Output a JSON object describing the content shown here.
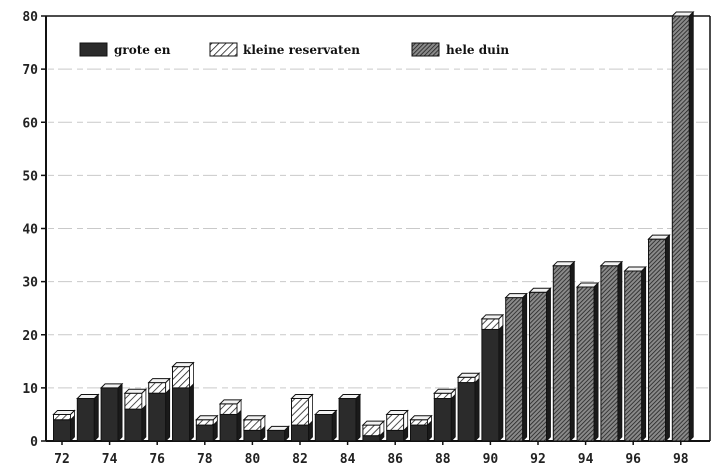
{
  "chart_data": {
    "type": "bar",
    "stacked": true,
    "title": "",
    "xlabel": "",
    "ylabel": "",
    "ylim": [
      0,
      80
    ],
    "yticks": [
      "0",
      "10",
      "20",
      "30",
      "40",
      "50",
      "60",
      "70",
      "80"
    ],
    "grid": true,
    "legend_position": "top-left",
    "categories": [
      "72",
      "73",
      "74",
      "75",
      "76",
      "77",
      "78",
      "79",
      "80",
      "81",
      "82",
      "83",
      "84",
      "85",
      "86",
      "87",
      "88",
      "89",
      "90",
      "91",
      "92",
      "93",
      "94",
      "95",
      "96",
      "97",
      "98"
    ],
    "xtick_labels": [
      {
        "index": 0,
        "label": "72"
      },
      {
        "index": 2,
        "label": "74"
      },
      {
        "index": 4,
        "label": "76"
      },
      {
        "index": 6,
        "label": "78"
      },
      {
        "index": 8,
        "label": "80"
      },
      {
        "index": 10,
        "label": "82"
      },
      {
        "index": 12,
        "label": "84"
      },
      {
        "index": 14,
        "label": "86"
      },
      {
        "index": 16,
        "label": "88"
      },
      {
        "index": 18,
        "label": "90"
      },
      {
        "index": 20,
        "label": "92"
      },
      {
        "index": 22,
        "label": "94"
      },
      {
        "index": 24,
        "label": "96"
      },
      {
        "index": 26,
        "label": "98"
      }
    ],
    "series": [
      {
        "name": "grote en",
        "color": "#2b2b2b",
        "pattern": "solid",
        "values": [
          4,
          8,
          10,
          6,
          9,
          10,
          3,
          5,
          2,
          2,
          3,
          5,
          8,
          1,
          2,
          3,
          8,
          11,
          21,
          0,
          0,
          0,
          0,
          0,
          0,
          0,
          0
        ]
      },
      {
        "name": "kleine reservaten",
        "color": "#ffffff",
        "pattern": "hatch",
        "values": [
          1,
          0,
          0,
          3,
          2,
          4,
          1,
          2,
          2,
          0,
          5,
          0,
          0,
          2,
          3,
          1,
          1,
          1,
          2,
          0,
          0,
          0,
          0,
          0,
          0,
          0,
          0
        ]
      },
      {
        "name": "hele duin",
        "color": "#555555",
        "pattern": "crosshatch",
        "values": [
          0,
          0,
          0,
          0,
          0,
          0,
          0,
          0,
          0,
          0,
          0,
          0,
          0,
          0,
          0,
          0,
          0,
          0,
          0,
          27,
          28,
          33,
          29,
          33,
          32,
          38,
          80
        ]
      }
    ]
  }
}
